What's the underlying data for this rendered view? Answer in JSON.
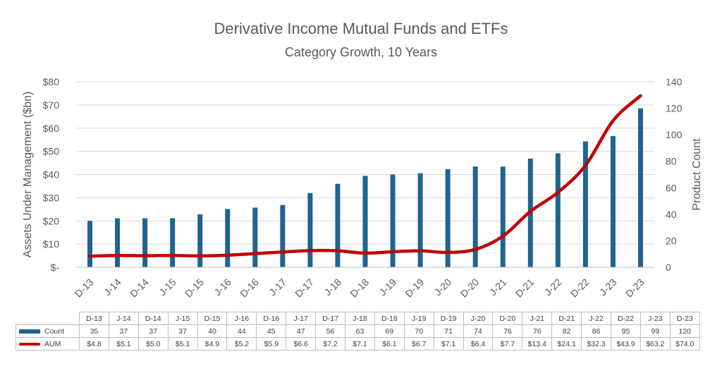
{
  "chart_data": {
    "type": "bar+line",
    "title": "Derivative Income Mutual Funds and ETFs",
    "subtitle": "Category Growth, 10 Years",
    "categories": [
      "D-13",
      "J-14",
      "D-14",
      "J-15",
      "D-15",
      "J-16",
      "D-16",
      "J-17",
      "D-17",
      "J-18",
      "D-18",
      "J-19",
      "D-19",
      "J-20",
      "D-20",
      "J-21",
      "D-21",
      "J-22",
      "D-22",
      "J-23",
      "D-23"
    ],
    "series": [
      {
        "name": "Count",
        "type": "bar",
        "axis": "right",
        "color": "#1f6391",
        "values": [
          35,
          37,
          37,
          37,
          40,
          44,
          45,
          47,
          56,
          63,
          69,
          70,
          71,
          74,
          76,
          76,
          82,
          86,
          95,
          99,
          120
        ]
      },
      {
        "name": "AUM",
        "type": "line",
        "axis": "left",
        "color": "#c00000",
        "values": [
          4.8,
          5.1,
          5.0,
          5.1,
          4.9,
          5.2,
          5.9,
          6.6,
          7.2,
          7.1,
          6.1,
          6.7,
          7.1,
          6.4,
          7.7,
          13.4,
          24.1,
          32.3,
          43.9,
          63.2,
          74.0
        ]
      }
    ],
    "table_labels": {
      "count": [
        "35",
        "37",
        "37",
        "37",
        "40",
        "44",
        "45",
        "47",
        "56",
        "63",
        "69",
        "70",
        "71",
        "74",
        "76",
        "76",
        "82",
        "86",
        "95",
        "99",
        "120"
      ],
      "aum": [
        "$4.8",
        "$5.1",
        "$5.0",
        "$5.1",
        "$4.9",
        "$5.2",
        "$5.9",
        "$6.6",
        "$7.2",
        "$7.1",
        "$6.1",
        "$6.7",
        "$7.1",
        "$6.4",
        "$7.7",
        "$13.4",
        "$24.1",
        "$32.3",
        "$43.9",
        "$63.2",
        "$74.0"
      ]
    },
    "ylabel_left": "Assets Under Management ($bn)",
    "ylabel_right": "Product Count",
    "ylim_left": [
      0,
      80
    ],
    "ylim_right": [
      0,
      140
    ],
    "yticks_left": [
      "$-",
      "$10",
      "$20",
      "$30",
      "$40",
      "$50",
      "$60",
      "$70",
      "$80"
    ],
    "yticks_right": [
      "0",
      "20",
      "40",
      "60",
      "80",
      "100",
      "120",
      "140"
    ],
    "grid": true,
    "legend": "data table"
  }
}
